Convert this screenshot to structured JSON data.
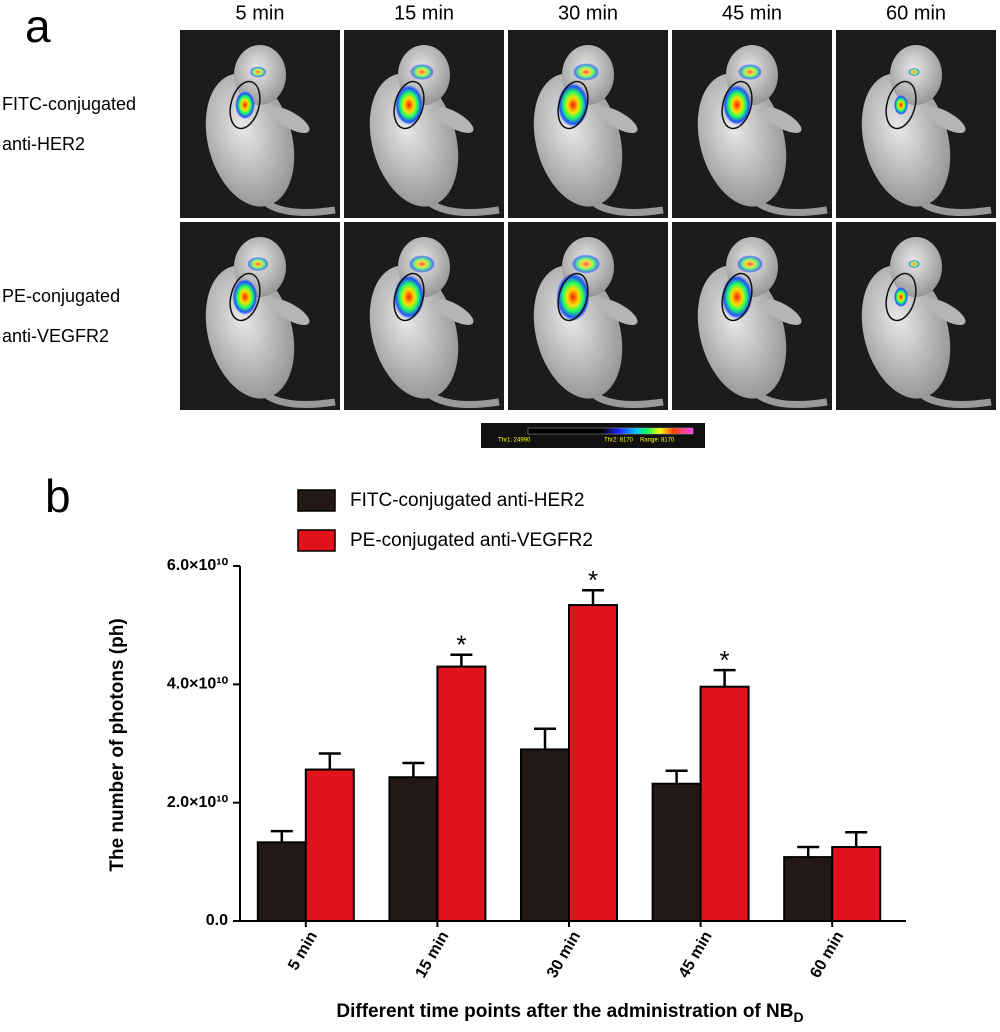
{
  "panel_a": {
    "label": "a",
    "columns": [
      "5 min",
      "15 min",
      "30 min",
      "45 min",
      "60 min"
    ],
    "rows": [
      [
        "FITC-conjugated",
        "anti-HER2"
      ],
      [
        "PE-conjugated",
        "anti-VEGFR2"
      ]
    ],
    "colorbar": [
      "Thr1: 24990",
      "Thr2: 8170",
      "Range: 8170"
    ]
  },
  "chart_data": {
    "type": "bar",
    "panel_label": "b",
    "y_label": "The number of photons (ph)",
    "x_label": {
      "text": "Different time points after the administration of NB",
      "subscript": "D"
    },
    "categories": [
      "5 min",
      "15 min",
      "30 min",
      "45 min",
      "60 min"
    ],
    "series": [
      {
        "name": "FITC-conjugated anti-HER2",
        "color": "#231815",
        "values": [
          13300000000,
          24300000000,
          29000000000,
          23200000000,
          10800000000
        ],
        "errors": [
          1900000000,
          2400000000,
          3500000000,
          2200000000,
          1700000000
        ],
        "markers": [
          null,
          null,
          null,
          null,
          null
        ]
      },
      {
        "name": "PE-conjugated anti-VEGFR2",
        "color": "#e0121b",
        "values": [
          25600000000,
          43000000000,
          53400000000,
          39600000000,
          12500000000
        ],
        "errors": [
          2700000000,
          2000000000,
          2500000000,
          2800000000,
          2500000000
        ],
        "markers": [
          null,
          "*",
          "*",
          "*",
          null
        ]
      }
    ],
    "ylim": [
      0,
      60000000000
    ],
    "yticks": [
      {
        "value": 0,
        "label": "0.0"
      },
      {
        "value": 20000000000,
        "label": "2.0×10¹⁰"
      },
      {
        "value": 40000000000,
        "label": "4.0×10¹⁰"
      },
      {
        "value": 60000000000,
        "label": "6.0×10¹⁰"
      }
    ]
  }
}
